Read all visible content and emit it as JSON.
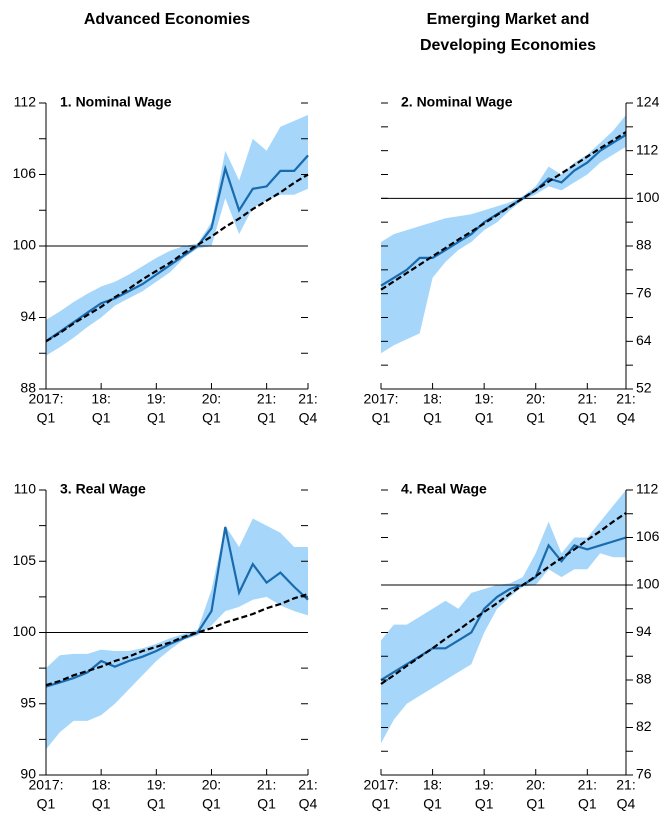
{
  "column_titles": [
    [
      "Advanced Economies"
    ],
    [
      "Emerging Market and",
      "Developing Economies"
    ]
  ],
  "chart_data": [
    {
      "type": "line",
      "title": "1. Nominal Wage",
      "yaxis_side": "left",
      "hline": 100,
      "categories": [
        [
          "2017:",
          "Q1"
        ],
        null,
        null,
        null,
        [
          "18:",
          "Q1"
        ],
        null,
        null,
        null,
        [
          "19:",
          "Q1"
        ],
        null,
        null,
        null,
        [
          "20:",
          "Q1"
        ],
        null,
        null,
        null,
        [
          "21:",
          "Q1"
        ],
        null,
        null,
        [
          "21:",
          "Q4"
        ]
      ],
      "ylim": [
        88,
        112
      ],
      "yticks": [
        88,
        94,
        100,
        106,
        112
      ],
      "minor_yticks": [
        91,
        97,
        103,
        109
      ],
      "band": {
        "color": "#a6d7fb",
        "upper": [
          93.8,
          94.5,
          95.3,
          96,
          96.6,
          97,
          97.6,
          98.3,
          99,
          99.6,
          100,
          100.2,
          102,
          108,
          105.5,
          109,
          108,
          110,
          110.5,
          111
        ],
        "lower": [
          90.8,
          91.5,
          92.3,
          93.2,
          94,
          95,
          95.6,
          96.2,
          97,
          97.8,
          99,
          99.8,
          100,
          104,
          101,
          103.2,
          103.8,
          104.3,
          104.3,
          104.8
        ]
      },
      "series": [
        {
          "color": "#1a6aae",
          "dashed": false,
          "values": [
            92.0,
            92.8,
            93.6,
            94.4,
            95.2,
            95.6,
            96.2,
            96.8,
            97.6,
            98.4,
            99.2,
            100.0,
            101.5,
            106.5,
            103.0,
            104.8,
            105.0,
            106.3,
            106.3,
            107.6
          ]
        },
        {
          "color": "#000000",
          "dashed": true,
          "values": [
            92.0,
            92.7,
            93.5,
            94.2,
            94.9,
            95.7,
            96.4,
            97.2,
            97.9,
            98.6,
            99.4,
            100.1,
            100.8,
            101.6,
            102.3,
            103.1,
            103.8,
            104.5,
            105.3,
            106.0
          ]
        }
      ]
    },
    {
      "type": "line",
      "title": "2. Nominal Wage",
      "yaxis_side": "right",
      "hline": 100,
      "categories": [
        [
          "2017:",
          "Q1"
        ],
        null,
        null,
        null,
        [
          "18:",
          "Q1"
        ],
        null,
        null,
        null,
        [
          "19:",
          "Q1"
        ],
        null,
        null,
        null,
        [
          "20:",
          "Q1"
        ],
        null,
        null,
        null,
        [
          "21:",
          "Q1"
        ],
        null,
        null,
        [
          "21:",
          "Q4"
        ]
      ],
      "ylim": [
        52,
        124
      ],
      "yticks": [
        52,
        64,
        76,
        88,
        100,
        112,
        124
      ],
      "minor_yticks": [
        58,
        70,
        82,
        94,
        106,
        118
      ],
      "band": {
        "color": "#a6d7fb",
        "upper": [
          89,
          91,
          92,
          93,
          94,
          95,
          95.5,
          96,
          97,
          98,
          99,
          100.5,
          103,
          108,
          106,
          109,
          111,
          114,
          117,
          121
        ],
        "lower": [
          61,
          63,
          64.5,
          66,
          80,
          84,
          87,
          89,
          92,
          94,
          97,
          99.5,
          101,
          103,
          102,
          104,
          106,
          109,
          111,
          113
        ]
      },
      "series": [
        {
          "color": "#1a6aae",
          "dashed": false,
          "values": [
            78,
            80,
            82,
            85,
            85,
            87,
            89,
            91,
            94,
            96,
            98,
            100,
            102,
            105,
            104,
            107,
            109,
            112,
            114,
            116
          ]
        },
        {
          "color": "#000000",
          "dashed": true,
          "values": [
            77,
            79.1,
            81.2,
            83.3,
            85.4,
            87.5,
            89.6,
            91.6,
            93.7,
            95.8,
            97.9,
            100,
            102.1,
            104.2,
            106.3,
            108.4,
            110.5,
            112.6,
            114.6,
            116.7
          ]
        }
      ]
    },
    {
      "type": "line",
      "title": "3. Real Wage",
      "yaxis_side": "left",
      "hline": 100,
      "categories": [
        [
          "2017:",
          "Q1"
        ],
        null,
        null,
        null,
        [
          "18:",
          "Q1"
        ],
        null,
        null,
        null,
        [
          "19:",
          "Q1"
        ],
        null,
        null,
        null,
        [
          "20:",
          "Q1"
        ],
        null,
        null,
        null,
        [
          "21:",
          "Q1"
        ],
        null,
        null,
        [
          "21:",
          "Q4"
        ]
      ],
      "ylim": [
        90,
        110
      ],
      "yticks": [
        90,
        95,
        100,
        105,
        110
      ],
      "minor_yticks": [
        92.5,
        97.5,
        102.5,
        107.5
      ],
      "band": {
        "color": "#a6d7fb",
        "upper": [
          97.5,
          98.4,
          98.5,
          98.5,
          98.8,
          98.7,
          98.7,
          98.9,
          99.2,
          99.6,
          99.9,
          100.2,
          103,
          107.5,
          106,
          108,
          107.5,
          107,
          106,
          106
        ],
        "lower": [
          91.8,
          93,
          93.8,
          93.8,
          94.2,
          95,
          96,
          97,
          98,
          98.8,
          99.5,
          99.8,
          100.5,
          101.5,
          101.8,
          102.3,
          102.5,
          101.9,
          101.5,
          101.2
        ]
      },
      "series": [
        {
          "color": "#1a6aae",
          "dashed": false,
          "values": [
            96.2,
            96.5,
            96.8,
            97.2,
            98.0,
            97.6,
            98.0,
            98.3,
            98.7,
            99.2,
            99.6,
            100.0,
            101.5,
            107.4,
            102.8,
            104.8,
            103.5,
            104.2,
            103.2,
            102.3
          ]
        },
        {
          "color": "#000000",
          "dashed": true,
          "values": [
            96.3,
            96.6,
            97.0,
            97.3,
            97.6,
            98.0,
            98.3,
            98.7,
            99.0,
            99.3,
            99.7,
            100.0,
            100.3,
            100.7,
            101.0,
            101.3,
            101.7,
            102.0,
            102.4,
            102.7
          ]
        }
      ]
    },
    {
      "type": "line",
      "title": "4. Real Wage",
      "yaxis_side": "right",
      "hline": 100,
      "categories": [
        [
          "2017:",
          "Q1"
        ],
        null,
        null,
        null,
        [
          "18:",
          "Q1"
        ],
        null,
        null,
        null,
        [
          "19:",
          "Q1"
        ],
        null,
        null,
        null,
        [
          "20:",
          "Q1"
        ],
        null,
        null,
        null,
        [
          "21:",
          "Q1"
        ],
        null,
        null,
        [
          "21:",
          "Q4"
        ]
      ],
      "ylim": [
        76,
        112
      ],
      "yticks": [
        76,
        82,
        88,
        94,
        100,
        106,
        112
      ],
      "minor_yticks": [
        79,
        85,
        91,
        97,
        103,
        109
      ],
      "band": {
        "color": "#a6d7fb",
        "upper": [
          93,
          95,
          95,
          96,
          97,
          98,
          97,
          99,
          99.5,
          100,
          100.2,
          101,
          104,
          108,
          104,
          106,
          106,
          108,
          110,
          112
        ],
        "lower": [
          80,
          83,
          85,
          86,
          87,
          88,
          89,
          90,
          94,
          97,
          98.5,
          99.8,
          100,
          102,
          101,
          102,
          102,
          104,
          103.5,
          103.5
        ]
      },
      "series": [
        {
          "color": "#1a6aae",
          "dashed": false,
          "values": [
            88,
            89,
            90,
            91,
            92,
            92,
            93,
            94,
            97,
            98.5,
            99.5,
            100,
            101,
            105,
            103,
            105,
            104.5,
            105,
            105.5,
            106
          ]
        },
        {
          "color": "#000000",
          "dashed": true,
          "values": [
            87.5,
            88.6,
            89.8,
            90.9,
            92.0,
            93.2,
            94.3,
            95.5,
            96.6,
            97.7,
            98.9,
            100.0,
            101.1,
            102.3,
            103.4,
            104.5,
            105.7,
            106.8,
            108.0,
            109.1
          ]
        }
      ]
    }
  ]
}
